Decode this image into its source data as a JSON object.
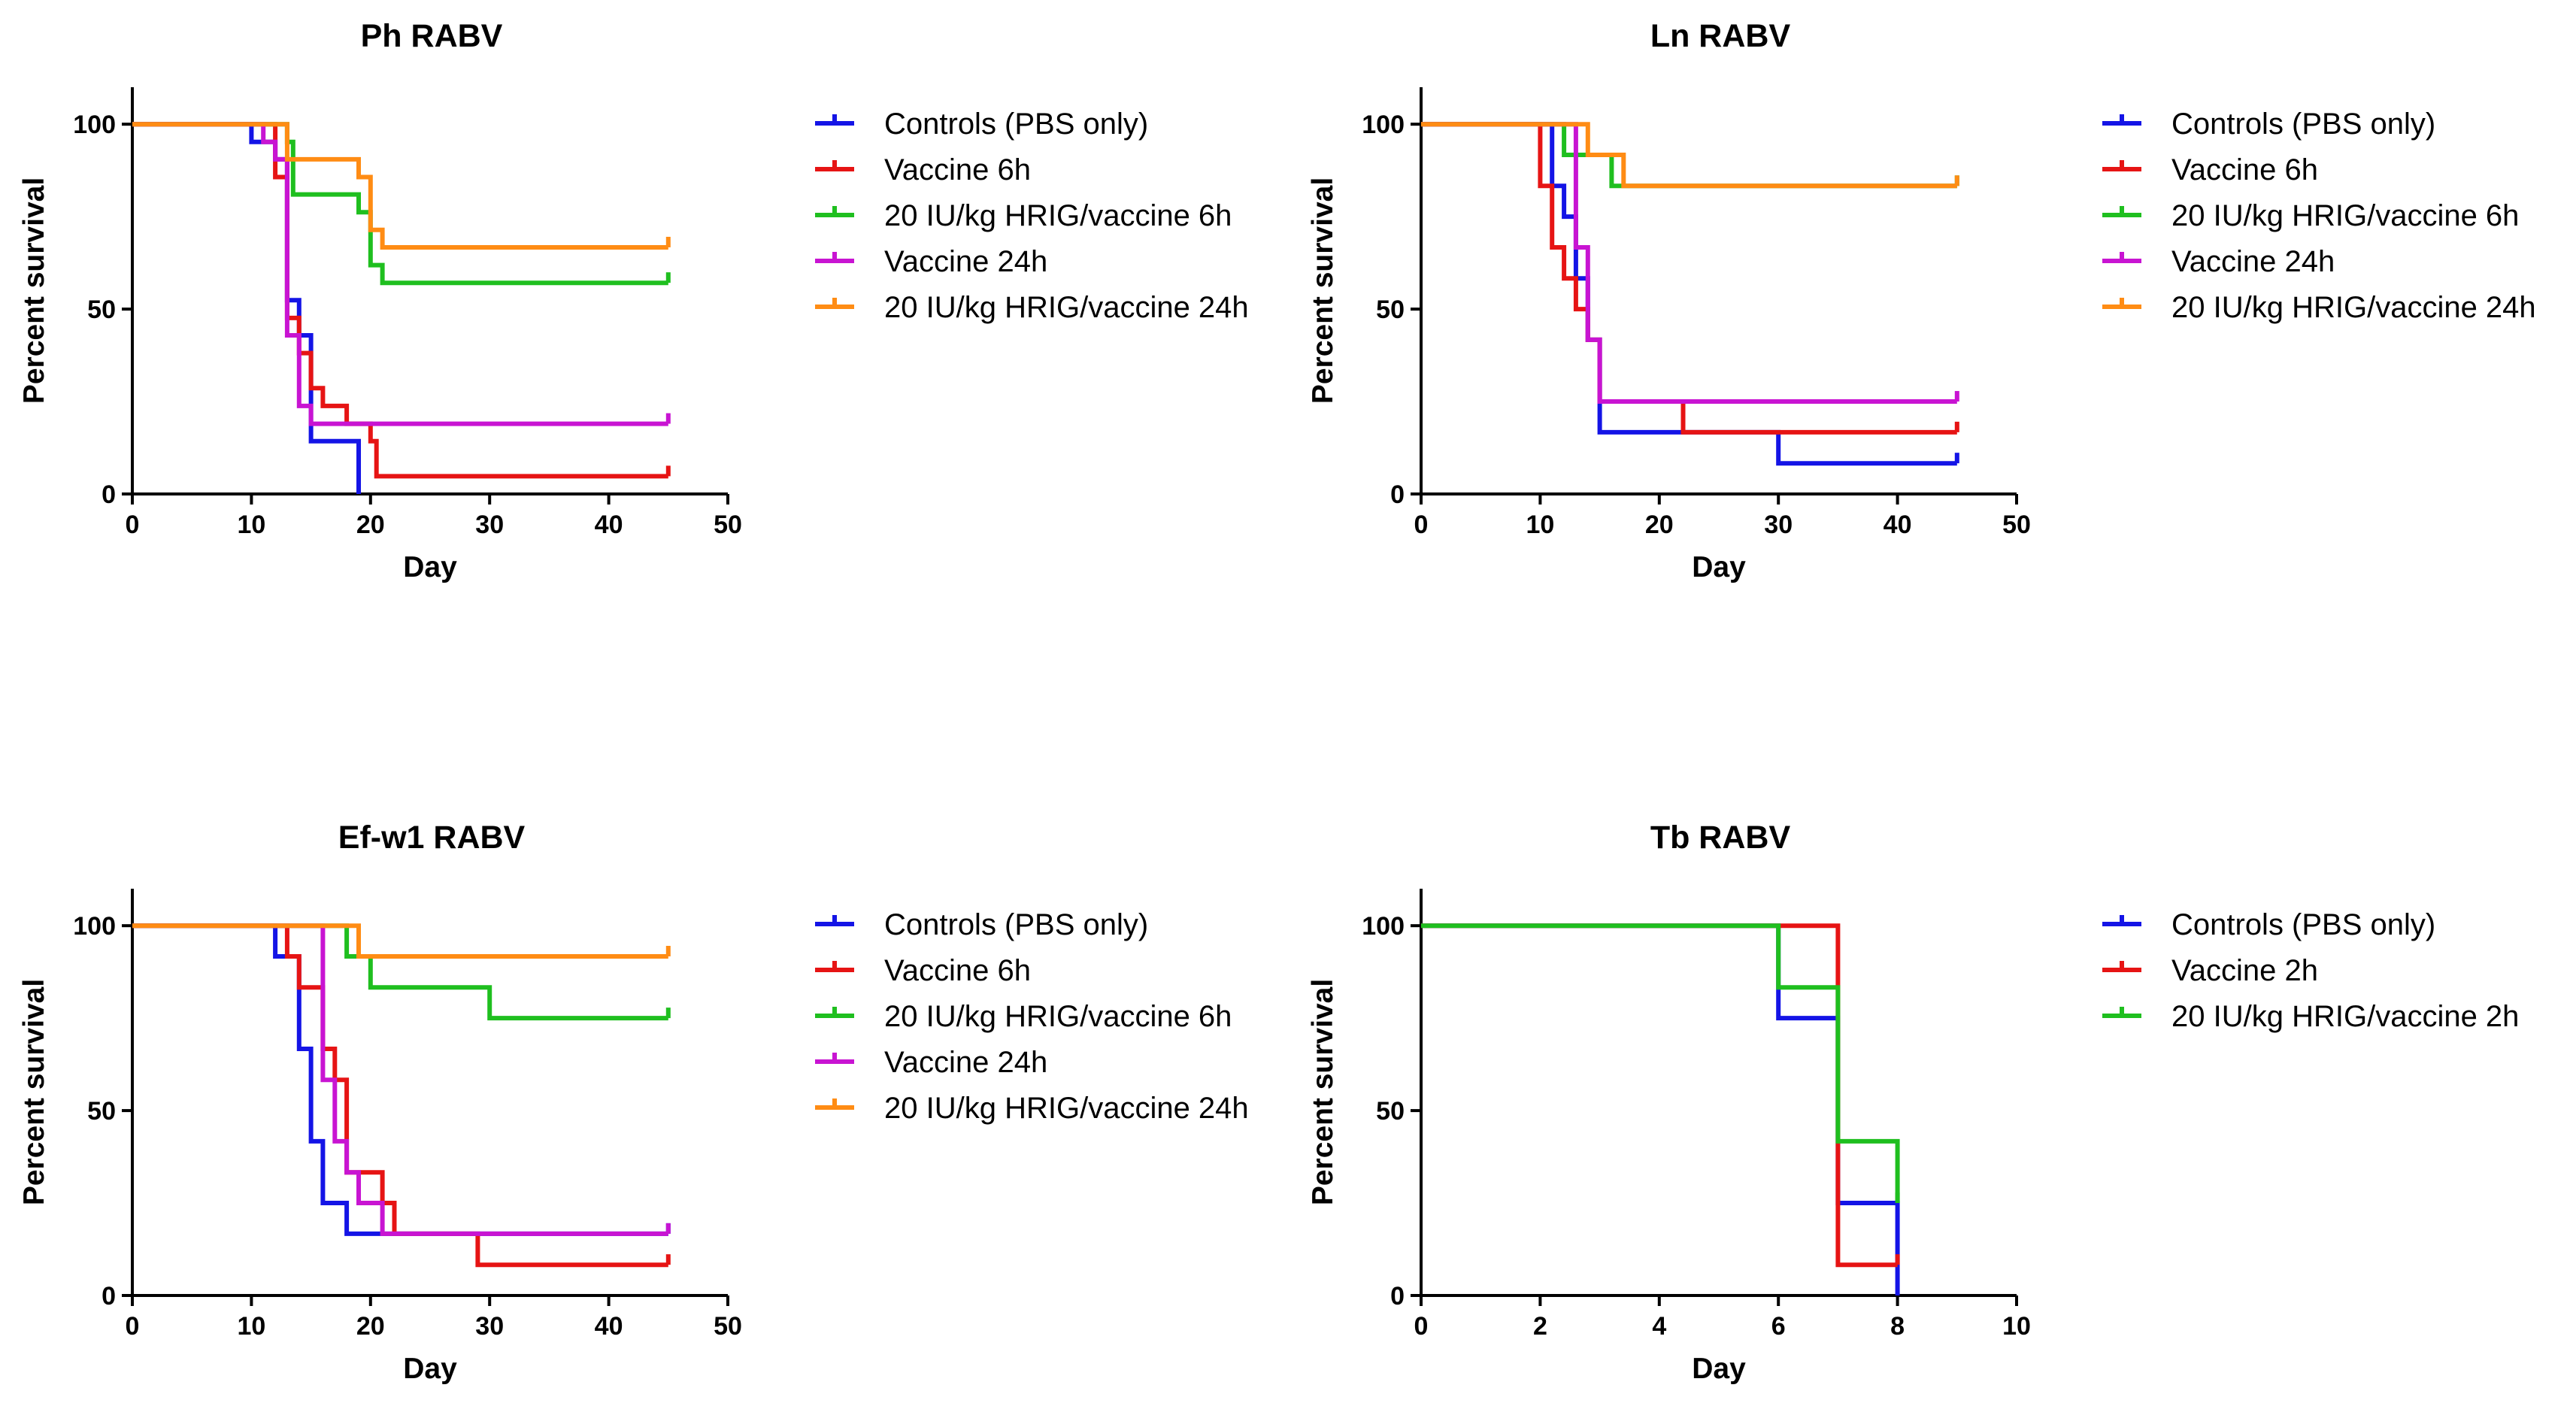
{
  "chart_data": [
    {
      "type": "line",
      "subtype": "kaplan-meier",
      "title": "Ph RABV",
      "xlabel": "Day",
      "ylabel": "Percent survival",
      "xlim": [
        0,
        50
      ],
      "ylim": [
        0,
        110
      ],
      "xticks": [
        0,
        10,
        20,
        30,
        40,
        50
      ],
      "yticks": [
        0,
        50,
        100
      ],
      "grid": false,
      "legend": "right",
      "series": [
        {
          "name": "Controls (PBS only)",
          "color": "#1414e6",
          "points": [
            [
              0,
              100
            ],
            [
              10,
              100
            ],
            [
              10,
              95.2
            ],
            [
              12,
              95.2
            ],
            [
              12,
              90.5
            ],
            [
              13,
              90.5
            ],
            [
              13,
              52.4
            ],
            [
              14,
              52.4
            ],
            [
              14,
              42.9
            ],
            [
              15,
              42.9
            ],
            [
              15,
              14.3
            ],
            [
              19,
              14.3
            ],
            [
              19,
              0
            ]
          ]
        },
        {
          "name": "Vaccine 6h",
          "color": "#e61414",
          "points": [
            [
              0,
              100
            ],
            [
              12,
              100
            ],
            [
              12,
              85.7
            ],
            [
              13,
              85.7
            ],
            [
              13,
              47.6
            ],
            [
              14,
              47.6
            ],
            [
              14,
              38.1
            ],
            [
              15,
              38.1
            ],
            [
              15,
              28.6
            ],
            [
              16,
              28.6
            ],
            [
              16,
              23.8
            ],
            [
              18,
              23.8
            ],
            [
              18,
              19.0
            ],
            [
              20,
              19.0
            ],
            [
              20,
              14.3
            ],
            [
              20.5,
              14.3
            ],
            [
              20.5,
              4.8
            ],
            [
              45,
              4.8
            ]
          ]
        },
        {
          "name": "20 IU/kg HRIG/vaccine 6h",
          "color": "#1fbf1f",
          "points": [
            [
              0,
              100
            ],
            [
              13,
              100
            ],
            [
              13,
              95.2
            ],
            [
              13.5,
              95.2
            ],
            [
              13.5,
              81.0
            ],
            [
              19,
              81.0
            ],
            [
              19,
              76.2
            ],
            [
              20,
              76.2
            ],
            [
              20,
              61.9
            ],
            [
              21,
              61.9
            ],
            [
              21,
              57.1
            ],
            [
              45,
              57.1
            ]
          ]
        },
        {
          "name": "Vaccine 24h",
          "color": "#c814d2",
          "points": [
            [
              0,
              100
            ],
            [
              11,
              100
            ],
            [
              11,
              95.2
            ],
            [
              12,
              95.2
            ],
            [
              12,
              90.5
            ],
            [
              13,
              90.5
            ],
            [
              13,
              42.9
            ],
            [
              14,
              42.9
            ],
            [
              14,
              23.8
            ],
            [
              15,
              23.8
            ],
            [
              15,
              19.0
            ],
            [
              45,
              19.0
            ]
          ]
        },
        {
          "name": "20 IU/kg HRIG/vaccine 24h",
          "color": "#ff8c14",
          "points": [
            [
              0,
              100
            ],
            [
              13,
              100
            ],
            [
              13,
              90.5
            ],
            [
              19,
              90.5
            ],
            [
              19,
              85.7
            ],
            [
              20,
              85.7
            ],
            [
              20,
              71.4
            ],
            [
              21,
              71.4
            ],
            [
              21,
              66.7
            ],
            [
              45,
              66.7
            ]
          ]
        }
      ]
    },
    {
      "type": "line",
      "subtype": "kaplan-meier",
      "title": "Ln RABV",
      "xlabel": "Day",
      "ylabel": "Percent survival",
      "xlim": [
        0,
        50
      ],
      "ylim": [
        0,
        110
      ],
      "xticks": [
        0,
        10,
        20,
        30,
        40,
        50
      ],
      "yticks": [
        0,
        50,
        100
      ],
      "grid": false,
      "legend": "right",
      "series": [
        {
          "name": "Controls (PBS only)",
          "color": "#1414e6",
          "points": [
            [
              0,
              100
            ],
            [
              11,
              100
            ],
            [
              11,
              83.3
            ],
            [
              12,
              83.3
            ],
            [
              12,
              75
            ],
            [
              13,
              75
            ],
            [
              13,
              58.3
            ],
            [
              14,
              58.3
            ],
            [
              14,
              41.7
            ],
            [
              15,
              41.7
            ],
            [
              15,
              16.7
            ],
            [
              30,
              16.7
            ],
            [
              30,
              8.3
            ],
            [
              45,
              8.3
            ]
          ]
        },
        {
          "name": "Vaccine 6h",
          "color": "#e61414",
          "points": [
            [
              0,
              100
            ],
            [
              10,
              100
            ],
            [
              10,
              83.3
            ],
            [
              11,
              83.3
            ],
            [
              11,
              66.7
            ],
            [
              12,
              66.7
            ],
            [
              12,
              58.3
            ],
            [
              13,
              58.3
            ],
            [
              13,
              50
            ],
            [
              14,
              50
            ],
            [
              14,
              41.7
            ],
            [
              15,
              41.7
            ],
            [
              15,
              25
            ],
            [
              22,
              25
            ],
            [
              22,
              16.7
            ],
            [
              45,
              16.7
            ]
          ]
        },
        {
          "name": "20 IU/kg HRIG/vaccine 6h",
          "color": "#1fbf1f",
          "points": [
            [
              0,
              100
            ],
            [
              12,
              100
            ],
            [
              12,
              91.7
            ],
            [
              15,
              91.7
            ],
            [
              15,
              91.7
            ],
            [
              16,
              91.7
            ],
            [
              16,
              83.3
            ],
            [
              45,
              83.3
            ]
          ]
        },
        {
          "name": "Vaccine 24h",
          "color": "#c814d2",
          "points": [
            [
              0,
              100
            ],
            [
              13,
              100
            ],
            [
              13,
              66.7
            ],
            [
              14,
              66.7
            ],
            [
              14,
              41.7
            ],
            [
              15,
              41.7
            ],
            [
              15,
              25
            ],
            [
              45,
              25
            ]
          ]
        },
        {
          "name": "20 IU/kg HRIG/vaccine 24h",
          "color": "#ff8c14",
          "points": [
            [
              0,
              100
            ],
            [
              14,
              100
            ],
            [
              14,
              91.7
            ],
            [
              17,
              91.7
            ],
            [
              17,
              83.3
            ],
            [
              45,
              83.3
            ]
          ]
        }
      ]
    },
    {
      "type": "line",
      "subtype": "kaplan-meier",
      "title": "Ef-w1 RABV",
      "xlabel": "Day",
      "ylabel": "Percent survival",
      "xlim": [
        0,
        50
      ],
      "ylim": [
        0,
        110
      ],
      "xticks": [
        0,
        10,
        20,
        30,
        40,
        50
      ],
      "yticks": [
        0,
        50,
        100
      ],
      "grid": false,
      "legend": "right",
      "series": [
        {
          "name": "Controls (PBS only)",
          "color": "#1414e6",
          "points": [
            [
              0,
              100
            ],
            [
              12,
              100
            ],
            [
              12,
              91.7
            ],
            [
              14,
              91.7
            ],
            [
              14,
              66.7
            ],
            [
              15,
              66.7
            ],
            [
              15,
              41.7
            ],
            [
              16,
              41.7
            ],
            [
              16,
              25
            ],
            [
              18,
              25
            ],
            [
              18,
              16.7
            ],
            [
              45,
              16.7
            ]
          ]
        },
        {
          "name": "Vaccine 6h",
          "color": "#e61414",
          "points": [
            [
              0,
              100
            ],
            [
              13,
              100
            ],
            [
              13,
              91.7
            ],
            [
              14,
              91.7
            ],
            [
              14,
              83.3
            ],
            [
              16,
              83.3
            ],
            [
              16,
              66.7
            ],
            [
              17,
              66.7
            ],
            [
              17,
              58.3
            ],
            [
              18,
              58.3
            ],
            [
              18,
              33.3
            ],
            [
              21,
              33.3
            ],
            [
              21,
              25
            ],
            [
              22,
              25
            ],
            [
              22,
              16.7
            ],
            [
              29,
              16.7
            ],
            [
              29,
              8.3
            ],
            [
              45,
              8.3
            ]
          ]
        },
        {
          "name": "20 IU/kg HRIG/vaccine 6h",
          "color": "#1fbf1f",
          "points": [
            [
              0,
              100
            ],
            [
              18,
              100
            ],
            [
              18,
              91.7
            ],
            [
              20,
              91.7
            ],
            [
              20,
              83.3
            ],
            [
              30,
              83.3
            ],
            [
              30,
              75
            ],
            [
              45,
              75
            ]
          ]
        },
        {
          "name": "Vaccine 24h",
          "color": "#c814d2",
          "points": [
            [
              0,
              100
            ],
            [
              16,
              100
            ],
            [
              16,
              58.3
            ],
            [
              17,
              58.3
            ],
            [
              17,
              41.7
            ],
            [
              18,
              41.7
            ],
            [
              18,
              33.3
            ],
            [
              19,
              33.3
            ],
            [
              19,
              25
            ],
            [
              21,
              25
            ],
            [
              21,
              16.7
            ],
            [
              45,
              16.7
            ]
          ]
        },
        {
          "name": "20 IU/kg HRIG/vaccine 24h",
          "color": "#ff8c14",
          "points": [
            [
              0,
              100
            ],
            [
              19,
              100
            ],
            [
              19,
              91.7
            ],
            [
              45,
              91.7
            ]
          ]
        }
      ]
    },
    {
      "type": "line",
      "subtype": "kaplan-meier",
      "title": "Tb RABV",
      "xlabel": "Day",
      "ylabel": "Percent survival",
      "xlim": [
        0,
        10
      ],
      "ylim": [
        0,
        110
      ],
      "xticks": [
        0,
        2,
        4,
        6,
        8,
        10
      ],
      "yticks": [
        0,
        50,
        100
      ],
      "grid": false,
      "legend": "right",
      "series": [
        {
          "name": "Controls (PBS only)",
          "color": "#1414e6",
          "points": [
            [
              0,
              100
            ],
            [
              6,
              100
            ],
            [
              6,
              75
            ],
            [
              7,
              75
            ],
            [
              7,
              25
            ],
            [
              8,
              25
            ],
            [
              8,
              0
            ]
          ]
        },
        {
          "name": "Vaccine 2h",
          "color": "#e61414",
          "points": [
            [
              0,
              100
            ],
            [
              7,
              100
            ],
            [
              7,
              8.3
            ],
            [
              8,
              8.3
            ]
          ]
        },
        {
          "name": "20 IU/kg HRIG/vaccine 2h",
          "color": "#1fbf1f",
          "points": [
            [
              0,
              100
            ],
            [
              6,
              100
            ],
            [
              6,
              83.3
            ],
            [
              7,
              83.3
            ],
            [
              7,
              41.7
            ],
            [
              8,
              41.7
            ],
            [
              8,
              25
            ]
          ]
        }
      ]
    }
  ]
}
